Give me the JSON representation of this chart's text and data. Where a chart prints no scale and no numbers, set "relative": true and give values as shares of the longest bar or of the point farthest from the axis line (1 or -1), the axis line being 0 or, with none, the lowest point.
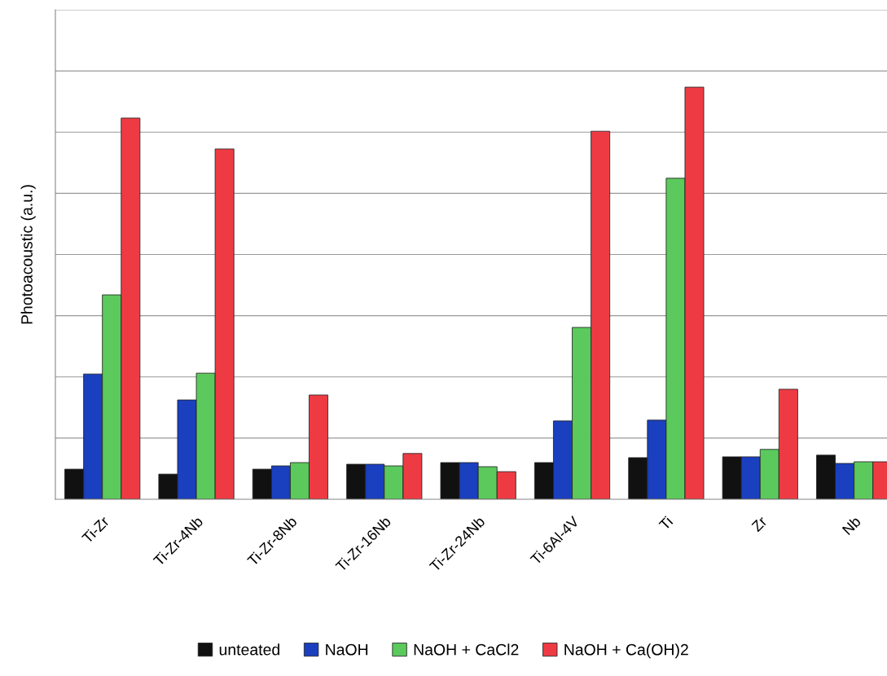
{
  "chart_data": {
    "type": "bar",
    "ylabel": "Photoacoustic (a.u.)",
    "relative": true,
    "grid": "y",
    "legend": "bottom",
    "categories": [
      "Ti-Zr",
      "Ti-Zr-4Nb",
      "Ti-Zr-8Nb",
      "Ti-Zr-16Nb",
      "Ti-Zr-24Nb",
      "Ti-6Al-4V",
      "Ti",
      "Zr",
      "Nb"
    ],
    "series": [
      {
        "name": "unteated",
        "color": "#111111",
        "values": [
          0.073,
          0.061,
          0.073,
          0.085,
          0.089,
          0.089,
          0.101,
          0.103,
          0.107
        ]
      },
      {
        "name": "NaOH",
        "color": "#1a3fbf",
        "values": [
          0.304,
          0.241,
          0.081,
          0.085,
          0.089,
          0.19,
          0.192,
          0.103,
          0.087
        ]
      },
      {
        "name": "NaOH + CaCl2",
        "color": "#5cc95c",
        "values": [
          0.496,
          0.306,
          0.089,
          0.081,
          0.079,
          0.417,
          0.779,
          0.121,
          0.091
        ]
      },
      {
        "name": "NaOH + Ca(OH)2",
        "color": "#ee3b43",
        "values": [
          0.925,
          0.85,
          0.253,
          0.111,
          0.067,
          0.893,
          1,
          0.267,
          0.091
        ]
      }
    ]
  }
}
